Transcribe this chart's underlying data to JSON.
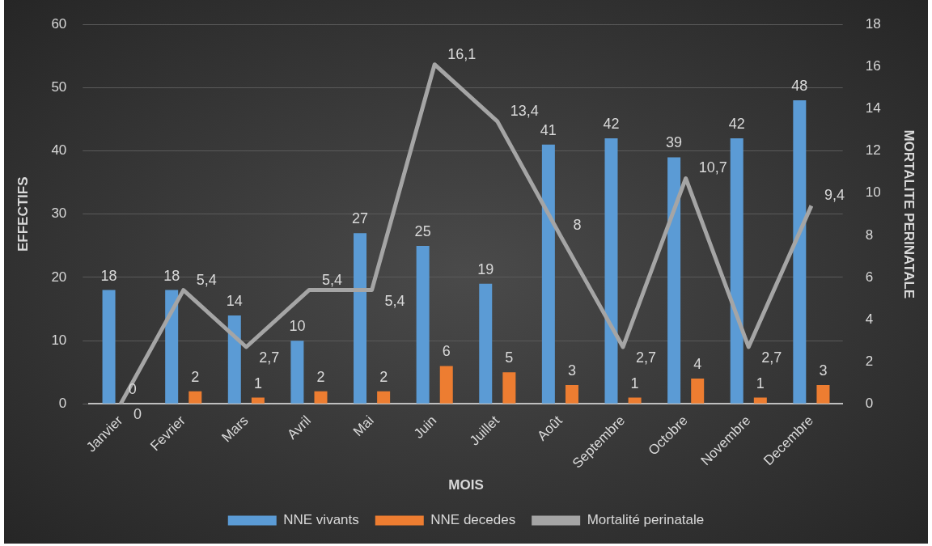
{
  "chart_data": {
    "type": "bar",
    "xlabel": "MOIS",
    "ylabel": "EFFECTIFS",
    "y2label": "MORTALITE PERINATALE",
    "categories": [
      "Janvier",
      "Fevrier",
      "Mars",
      "Avril",
      "Mai",
      "Juin",
      "Juillet",
      "Août",
      "Septembre",
      "Octobre",
      "Novembre",
      "Decembre"
    ],
    "series": [
      {
        "name": "NNE vivants",
        "color": "#5b9bd5",
        "values": [
          18,
          18,
          14,
          10,
          27,
          25,
          19,
          41,
          42,
          39,
          42,
          48
        ]
      },
      {
        "name": "NNE decedes",
        "color": "#ed7d31",
        "values": [
          0,
          2,
          1,
          2,
          2,
          6,
          5,
          3,
          1,
          4,
          1,
          3
        ]
      },
      {
        "name": "Mortalité perinatale",
        "type": "line",
        "axis": "y2",
        "color": "#a5a5a5",
        "values": [
          0,
          5.4,
          2.7,
          5.4,
          5.4,
          16.1,
          13.4,
          8,
          2.7,
          10.7,
          2.7,
          9.4
        ],
        "value_labels": [
          "0",
          "5,4",
          "2,7",
          "5,4",
          "5,4",
          "16,1",
          "13,4",
          "8",
          "2,7",
          "10,7",
          "2,7",
          "9,4"
        ]
      }
    ],
    "ylim": [
      0,
      60
    ],
    "yticks": [
      0,
      10,
      20,
      30,
      40,
      50,
      60
    ],
    "y2lim": [
      0,
      18
    ],
    "y2ticks": [
      0,
      2,
      4,
      6,
      8,
      10,
      12,
      14,
      16,
      18
    ],
    "grid": "y",
    "legend": "bottom",
    "data_labels": true,
    "marker": "none"
  }
}
